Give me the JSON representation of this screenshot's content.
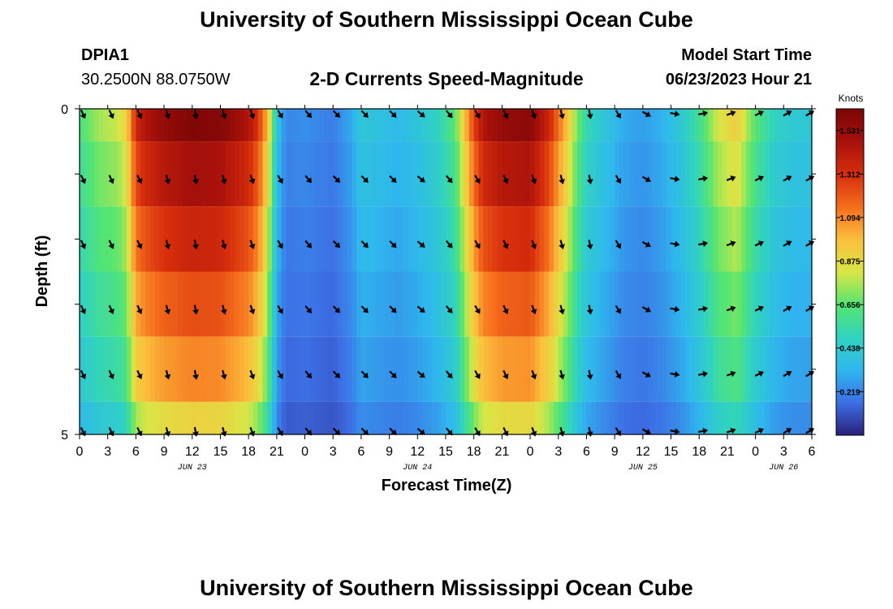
{
  "header": {
    "title": "University of Southern Mississippi Ocean Cube",
    "station_id": "DPIA1",
    "station_coords": "30.2500N  88.0750W",
    "subtitle": "2-D Currents Speed-Magnitude",
    "model_start_label": "Model Start Time",
    "model_start_value": "06/23/2023 Hour 21"
  },
  "footer": {
    "title": "University of Southern Mississippi Ocean Cube"
  },
  "chart_data": {
    "type": "heatmap",
    "title": "2-D Currents Speed-Magnitude",
    "xlabel": "Forecast Time(Z)",
    "ylabel": "Depth (ft)",
    "units_label": "Knots",
    "x_range_hours": [
      0,
      78
    ],
    "x_ticks": [
      {
        "h": 0,
        "label": "0"
      },
      {
        "h": 3,
        "label": "3"
      },
      {
        "h": 6,
        "label": "6"
      },
      {
        "h": 9,
        "label": "9"
      },
      {
        "h": 12,
        "label": "12"
      },
      {
        "h": 15,
        "label": "15"
      },
      {
        "h": 18,
        "label": "18"
      },
      {
        "h": 21,
        "label": "21"
      },
      {
        "h": 24,
        "label": "0"
      },
      {
        "h": 27,
        "label": "3"
      },
      {
        "h": 30,
        "label": "6"
      },
      {
        "h": 33,
        "label": "9"
      },
      {
        "h": 36,
        "label": "12"
      },
      {
        "h": 39,
        "label": "15"
      },
      {
        "h": 42,
        "label": "18"
      },
      {
        "h": 45,
        "label": "21"
      },
      {
        "h": 48,
        "label": "0"
      },
      {
        "h": 51,
        "label": "3"
      },
      {
        "h": 54,
        "label": "6"
      },
      {
        "h": 57,
        "label": "9"
      },
      {
        "h": 60,
        "label": "12"
      },
      {
        "h": 63,
        "label": "15"
      },
      {
        "h": 66,
        "label": "18"
      },
      {
        "h": 69,
        "label": "21"
      },
      {
        "h": 72,
        "label": "0"
      },
      {
        "h": 75,
        "label": "3"
      },
      {
        "h": 78,
        "label": "6"
      }
    ],
    "date_labels": [
      {
        "h": 12,
        "label": "JUN 23"
      },
      {
        "h": 36,
        "label": "JUN 24"
      },
      {
        "h": 60,
        "label": "JUN 25"
      },
      {
        "h": 75,
        "label": "JUN 26"
      }
    ],
    "y_range_ft": [
      0,
      5
    ],
    "y_ticks": [
      {
        "v": 0,
        "label": "0"
      },
      {
        "v": 5,
        "label": "5"
      }
    ],
    "colorbar": {
      "min": 0.0,
      "max": 1.64,
      "ticks": [
        0.219,
        0.438,
        0.656,
        0.875,
        1.094,
        1.312,
        1.531
      ],
      "colors": [
        "#2a1f7a",
        "#3d6fe6",
        "#2fb7ee",
        "#30d3bf",
        "#55e570",
        "#d9e645",
        "#fbbf3c",
        "#f56d1c",
        "#d62d0c",
        "#a8110b",
        "#7a0606"
      ]
    },
    "speed_profile": {
      "hours": [
        0,
        2,
        4,
        5,
        6,
        7,
        9,
        12,
        15,
        18,
        19,
        20,
        21,
        22,
        24,
        27,
        29,
        30,
        32,
        34,
        36,
        38,
        40,
        41,
        42,
        43,
        45,
        48,
        50,
        52,
        53,
        54,
        56,
        58,
        60,
        62,
        64,
        66,
        68,
        70,
        72,
        74,
        76,
        78
      ],
      "knots": [
        0.62,
        0.75,
        0.8,
        0.9,
        1.35,
        1.45,
        1.55,
        1.62,
        1.6,
        1.45,
        1.3,
        1.0,
        0.4,
        0.22,
        0.24,
        0.2,
        0.3,
        0.42,
        0.38,
        0.35,
        0.4,
        0.48,
        0.65,
        0.95,
        1.25,
        1.45,
        1.55,
        1.58,
        1.35,
        0.95,
        0.7,
        0.52,
        0.4,
        0.3,
        0.27,
        0.32,
        0.42,
        0.58,
        0.82,
        0.92,
        0.65,
        0.48,
        0.42,
        0.42
      ]
    },
    "depth_factors_ft": [
      {
        "from": 0,
        "to": 0.5,
        "factor": 1.0
      },
      {
        "from": 0.5,
        "to": 1.5,
        "factor": 0.92
      },
      {
        "from": 1.5,
        "to": 2.5,
        "factor": 0.84
      },
      {
        "from": 2.5,
        "to": 3.5,
        "factor": 0.76
      },
      {
        "from": 3.5,
        "to": 4.5,
        "factor": 0.68
      },
      {
        "from": 4.5,
        "to": 5.0,
        "factor": 0.56
      }
    ],
    "arrows": {
      "hours": [
        0,
        3,
        6,
        9,
        12,
        15,
        18,
        21,
        24,
        27,
        30,
        33,
        36,
        39,
        42,
        45,
        48,
        51,
        54,
        57,
        60,
        63,
        66,
        69,
        72,
        75,
        78
      ],
      "depths_ft": [
        0,
        1,
        2,
        3,
        4,
        5
      ],
      "angles_deg": [
        65,
        65,
        65,
        75,
        80,
        75,
        70,
        60,
        50,
        45,
        45,
        45,
        40,
        50,
        60,
        65,
        70,
        75,
        80,
        60,
        30,
        10,
        -10,
        -20,
        -25,
        -30,
        -30
      ]
    }
  }
}
